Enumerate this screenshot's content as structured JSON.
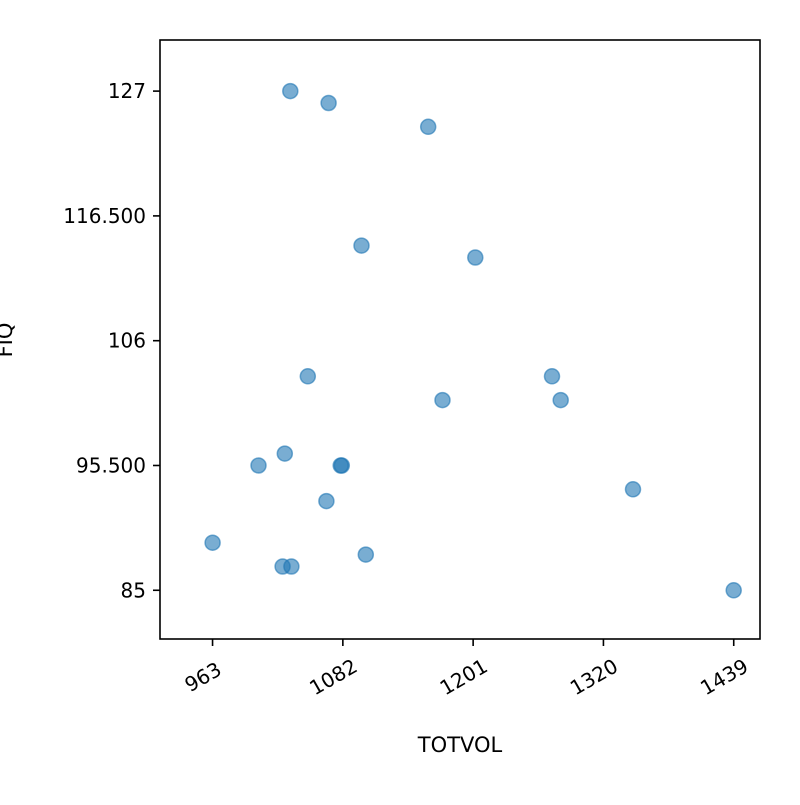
{
  "chart_data": {
    "type": "scatter",
    "xlabel": "TOTVOL",
    "ylabel": "FIQ",
    "xlim": [
      915,
      1463
    ],
    "ylim": [
      80.9,
      131.3
    ],
    "xticks": [
      963,
      1082,
      1201,
      1320,
      1439
    ],
    "xtick_labels": [
      "963",
      "1082",
      "1201",
      "1320",
      "1439"
    ],
    "yticks": [
      85,
      95.5,
      106,
      116.5,
      127
    ],
    "ytick_labels": [
      "85",
      "95.500",
      "106",
      "116.500",
      "127"
    ],
    "grid": false,
    "marker_color": "#1f77b4",
    "marker_alpha": 0.6,
    "points": [
      {
        "x": 1034,
        "y": 127
      },
      {
        "x": 1069,
        "y": 126
      },
      {
        "x": 1160,
        "y": 124
      },
      {
        "x": 1099,
        "y": 114
      },
      {
        "x": 1203,
        "y": 113
      },
      {
        "x": 1050,
        "y": 103
      },
      {
        "x": 1173,
        "y": 101
      },
      {
        "x": 1273,
        "y": 103
      },
      {
        "x": 1281,
        "y": 101
      },
      {
        "x": 1029,
        "y": 96.5
      },
      {
        "x": 1005,
        "y": 95.5
      },
      {
        "x": 1080,
        "y": 95.5
      },
      {
        "x": 1081,
        "y": 95.5
      },
      {
        "x": 1067,
        "y": 92.5
      },
      {
        "x": 1347,
        "y": 93.5
      },
      {
        "x": 963,
        "y": 89
      },
      {
        "x": 1103,
        "y": 88
      },
      {
        "x": 1027,
        "y": 87
      },
      {
        "x": 1035,
        "y": 87
      },
      {
        "x": 1439,
        "y": 85
      }
    ]
  }
}
